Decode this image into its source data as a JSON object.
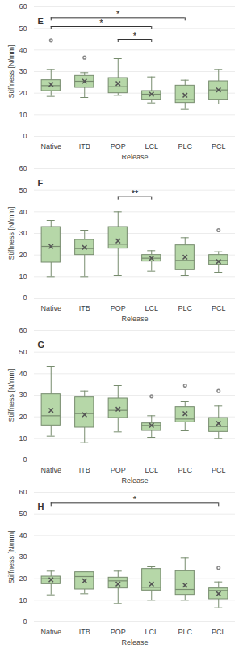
{
  "chart_data": [
    {
      "type": "box",
      "title": "E",
      "xlabel": "Release",
      "ylabel": "Stiffness [N/mm]",
      "categories": [
        "Native",
        "ITB",
        "POP",
        "LCL",
        "PLC",
        "PCL"
      ],
      "boxes": [
        {
          "whisker_low": 18.5,
          "q1": 21,
          "median": 23.5,
          "q3": 26,
          "whisker_high": 31,
          "mean": 24,
          "outliers": [
            44.5
          ]
        },
        {
          "whisker_low": 18,
          "q1": 22.5,
          "median": 25.5,
          "q3": 28,
          "whisker_high": 29.5,
          "mean": 25.5,
          "outliers": [
            36.5
          ]
        },
        {
          "whisker_low": 19,
          "q1": 20,
          "median": 23,
          "q3": 27,
          "whisker_high": 36,
          "mean": 24.5,
          "outliers": []
        },
        {
          "whisker_low": 15.5,
          "q1": 17,
          "median": 19.5,
          "q3": 21,
          "whisker_high": 27.5,
          "mean": 19.5,
          "outliers": []
        },
        {
          "whisker_low": 12.5,
          "q1": 15.5,
          "median": 17,
          "q3": 23.5,
          "whisker_high": 26,
          "mean": 19,
          "outliers": []
        },
        {
          "whisker_low": 15,
          "q1": 17,
          "median": 21.5,
          "q3": 25.5,
          "whisker_high": 31,
          "mean": 21.5,
          "outliers": []
        }
      ],
      "significance": [
        {
          "from": "Native",
          "to": "PLC",
          "y": 55,
          "label": "*"
        },
        {
          "from": "Native",
          "to": "LCL",
          "y": 51,
          "label": "*"
        },
        {
          "from": "POP",
          "to": "LCL",
          "y": 45,
          "label": "*"
        }
      ],
      "ylim": [
        0,
        60
      ],
      "yticks": [
        0,
        10,
        20,
        30,
        40,
        50,
        60
      ],
      "grid": true,
      "color": "#b6d7a8",
      "marker": "x"
    },
    {
      "type": "box",
      "title": "F",
      "xlabel": "Release",
      "ylabel": "Stiffness [N/mm]",
      "categories": [
        "Native",
        "ITB",
        "POP",
        "LCL",
        "PLC",
        "PCL"
      ],
      "boxes": [
        {
          "whisker_low": 10,
          "q1": 16.5,
          "median": 24,
          "q3": 33,
          "whisker_high": 36,
          "mean": 24,
          "outliers": []
        },
        {
          "whisker_low": 10,
          "q1": 20,
          "median": 23,
          "q3": 27,
          "whisker_high": 31.5,
          "mean": 23.5,
          "outliers": []
        },
        {
          "whisker_low": 10.5,
          "q1": 23,
          "median": 25,
          "q3": 33,
          "whisker_high": 40,
          "mean": 26.5,
          "outliers": []
        },
        {
          "whisker_low": 12.5,
          "q1": 17,
          "median": 18.5,
          "q3": 20,
          "whisker_high": 22,
          "mean": 18.5,
          "outliers": []
        },
        {
          "whisker_low": 10.5,
          "q1": 13,
          "median": 17.5,
          "q3": 24.5,
          "whisker_high": 28,
          "mean": 19,
          "outliers": []
        },
        {
          "whisker_low": 12,
          "q1": 15.5,
          "median": 17.5,
          "q3": 20,
          "whisker_high": 21.5,
          "mean": 17,
          "outliers": [
            31.5
          ]
        }
      ],
      "significance": [
        {
          "from": "POP",
          "to": "LCL",
          "y": 47,
          "label": "**"
        }
      ],
      "ylim": [
        0,
        60
      ],
      "yticks": [
        0,
        10,
        20,
        30,
        40,
        50,
        60
      ],
      "grid": true,
      "color": "#b6d7a8",
      "marker": "x"
    },
    {
      "type": "box",
      "title": "G",
      "xlabel": "Release",
      "ylabel": "Stiffness [N/mm]",
      "categories": [
        "Native",
        "ITB",
        "POP",
        "LCL",
        "PLC",
        "PCL"
      ],
      "boxes": [
        {
          "whisker_low": 11,
          "q1": 16,
          "median": 20.5,
          "q3": 30.5,
          "whisker_high": 43.5,
          "mean": 23,
          "outliers": []
        },
        {
          "whisker_low": 8,
          "q1": 15,
          "median": 21.5,
          "q3": 29,
          "whisker_high": 32,
          "mean": 21,
          "outliers": []
        },
        {
          "whisker_low": 13,
          "q1": 19.5,
          "median": 23,
          "q3": 28.5,
          "whisker_high": 34.5,
          "mean": 23.5,
          "outliers": []
        },
        {
          "whisker_low": 10.5,
          "q1": 13.5,
          "median": 16,
          "q3": 17,
          "whisker_high": 20.5,
          "mean": 16,
          "outliers": [
            29.5
          ]
        },
        {
          "whisker_low": 13.5,
          "q1": 17.5,
          "median": 19,
          "q3": 24.5,
          "whisker_high": 27,
          "mean": 21.5,
          "outliers": [
            34.5
          ]
        },
        {
          "whisker_low": 10,
          "q1": 13,
          "median": 15.5,
          "q3": 19.5,
          "whisker_high": 25,
          "mean": 17,
          "outliers": [
            32
          ]
        }
      ],
      "significance": [],
      "ylim": [
        0,
        60
      ],
      "yticks": [
        0,
        10,
        20,
        30,
        40,
        50,
        60
      ],
      "grid": true,
      "color": "#b6d7a8",
      "marker": "x"
    },
    {
      "type": "box",
      "title": "H",
      "xlabel": "Release",
      "ylabel": "Stiffness [N/mm]",
      "categories": [
        "Native",
        "ITB",
        "POP",
        "LCL",
        "PLC",
        "PCL"
      ],
      "boxes": [
        {
          "whisker_low": 12.5,
          "q1": 17.5,
          "median": 20,
          "q3": 21,
          "whisker_high": 23.5,
          "mean": 19.5,
          "outliers": []
        },
        {
          "whisker_low": 13,
          "q1": 15,
          "median": 21,
          "q3": 23,
          "whisker_high": 23,
          "mean": 19,
          "outliers": []
        },
        {
          "whisker_low": 8.5,
          "q1": 15.5,
          "median": 19,
          "q3": 20.5,
          "whisker_high": 23.5,
          "mean": 17.5,
          "outliers": []
        },
        {
          "whisker_low": 10,
          "q1": 14.5,
          "median": 16,
          "q3": 24.5,
          "whisker_high": 25.5,
          "mean": 17.5,
          "outliers": []
        },
        {
          "whisker_low": 10,
          "q1": 12.5,
          "median": 15,
          "q3": 23.5,
          "whisker_high": 29.5,
          "mean": 17,
          "outliers": []
        },
        {
          "whisker_low": 6.5,
          "q1": 10.5,
          "median": 14.5,
          "q3": 15.5,
          "whisker_high": 18.5,
          "mean": 13,
          "outliers": [
            25
          ]
        }
      ],
      "significance": [
        {
          "from": "Native",
          "to": "PCL",
          "y": 55,
          "label": "*"
        }
      ],
      "ylim": [
        0,
        60
      ],
      "yticks": [
        0,
        10,
        20,
        30,
        40,
        50,
        60
      ],
      "grid": true,
      "color": "#b6d7a8",
      "marker": "x"
    }
  ]
}
